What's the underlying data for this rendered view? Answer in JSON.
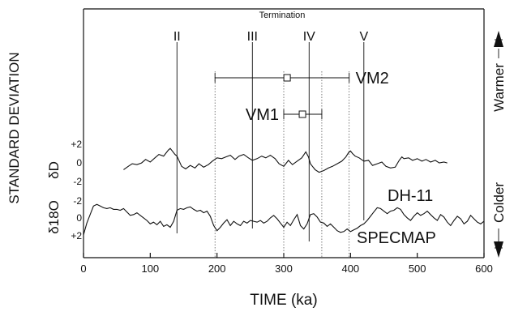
{
  "chart_data": {
    "type": "line",
    "title": "",
    "xlabel": "TIME (ka)",
    "ylabel": "STANDARD DEVIATION",
    "xlim": [
      0,
      600
    ],
    "x_ticks": [
      "0",
      "100",
      "200",
      "300",
      "400",
      "500",
      "600"
    ],
    "upper_axis_label": "δD",
    "upper_ticks": [
      "+2",
      "0",
      "-2"
    ],
    "lower_axis_label": "δ18O",
    "lower_ticks": [
      "-2",
      "0",
      "+2"
    ],
    "right_label_top": "Warmer",
    "right_label_bottom": "Colder",
    "terminations": {
      "label": "Termination",
      "items": [
        {
          "name": "II",
          "x": 140
        },
        {
          "name": "III",
          "x": 253
        },
        {
          "name": "IV",
          "x": 338
        },
        {
          "name": "V",
          "x": 420
        }
      ]
    },
    "ranges": [
      {
        "name": "VM2",
        "min": 197,
        "max": 398,
        "center": 305
      },
      {
        "name": "VM1",
        "min": 300,
        "max": 357,
        "center": 328
      }
    ],
    "dotted_lines_x": [
      197,
      300,
      357,
      398
    ],
    "series": [
      {
        "name": "DH-11",
        "x": [
          60,
          67,
          73,
          80,
          87,
          93,
          100,
          107,
          113,
          120,
          127,
          130,
          133,
          137,
          140,
          147,
          153,
          160,
          167,
          173,
          180,
          187,
          193,
          200,
          207,
          213,
          220,
          227,
          233,
          240,
          247,
          253,
          260,
          267,
          273,
          280,
          287,
          293,
          300,
          307,
          313,
          320,
          327,
          333,
          337,
          340,
          343,
          347,
          353,
          360,
          367,
          373,
          380,
          387,
          393,
          397,
          400,
          403,
          407,
          413,
          420,
          427,
          433,
          440,
          447,
          453,
          460,
          467,
          473,
          477,
          480,
          487,
          493,
          500,
          507,
          513,
          520,
          527,
          533,
          540,
          545
        ],
        "values": [
          -0.9,
          -0.5,
          -0.2,
          -0.3,
          -0.1,
          0.3,
          0.0,
          0.5,
          0.9,
          0.7,
          1.4,
          1.6,
          1.3,
          0.9,
          0.7,
          -0.5,
          -0.8,
          -0.4,
          -0.7,
          -0.2,
          -0.6,
          -0.3,
          0.1,
          0.5,
          0.4,
          0.6,
          0.8,
          0.3,
          0.7,
          0.9,
          0.5,
          0.2,
          0.4,
          0.7,
          0.5,
          0.8,
          0.4,
          -0.2,
          -0.5,
          0.2,
          -0.3,
          0.1,
          0.5,
          1.2,
          0.6,
          -0.2,
          -0.5,
          -0.9,
          -1.2,
          -1.0,
          -0.7,
          -0.5,
          -0.2,
          0.1,
          0.6,
          1.1,
          1.3,
          1.0,
          0.7,
          0.5,
          0.1,
          0.2,
          -0.4,
          -0.2,
          0.0,
          -0.5,
          -0.7,
          -0.6,
          0.2,
          0.6,
          0.4,
          0.5,
          0.2,
          0.4,
          0.1,
          0.3,
          0.0,
          0.2,
          -0.1,
          0.0,
          -0.1
        ]
      },
      {
        "name": "SPECMAP",
        "x": [
          0,
          5,
          10,
          15,
          20,
          25,
          30,
          35,
          40,
          45,
          50,
          55,
          60,
          65,
          70,
          75,
          80,
          85,
          90,
          95,
          100,
          105,
          110,
          115,
          120,
          125,
          130,
          135,
          140,
          145,
          150,
          155,
          160,
          165,
          170,
          175,
          180,
          185,
          190,
          195,
          200,
          205,
          210,
          215,
          220,
          225,
          230,
          235,
          240,
          245,
          250,
          255,
          260,
          265,
          270,
          275,
          280,
          285,
          290,
          295,
          300,
          305,
          310,
          315,
          320,
          325,
          330,
          335,
          340,
          345,
          350,
          355,
          360,
          365,
          370,
          375,
          380,
          385,
          390,
          395,
          400,
          405,
          410,
          415,
          420,
          425,
          430,
          435,
          440,
          445,
          450,
          455,
          460,
          465,
          470,
          475,
          480,
          485,
          490,
          495,
          500,
          505,
          510,
          515,
          520,
          525,
          530,
          535,
          540,
          545,
          550,
          555,
          560,
          565,
          570,
          575,
          580,
          585,
          590,
          595,
          600
        ],
        "values": [
          -1.9,
          -0.5,
          0.5,
          1.5,
          1.7,
          1.5,
          1.3,
          1.2,
          1.3,
          1.1,
          1.1,
          1.0,
          1.2,
          0.8,
          0.4,
          0.5,
          0.7,
          0.4,
          0.1,
          -0.2,
          -0.6,
          -0.4,
          -0.7,
          -0.3,
          -0.9,
          -0.7,
          -1.0,
          -0.3,
          1.0,
          1.2,
          1.1,
          1.3,
          1.4,
          1.1,
          0.9,
          1.0,
          0.7,
          0.9,
          0.3,
          -0.8,
          -1.4,
          -1.0,
          -0.5,
          -0.1,
          -0.8,
          -0.3,
          -0.6,
          -0.8,
          -0.3,
          -0.5,
          -0.2,
          -0.3,
          -0.4,
          -0.2,
          -0.5,
          -0.3,
          0.1,
          0.4,
          0.0,
          -0.5,
          -1.0,
          -0.4,
          -0.8,
          -0.1,
          0.5,
          -0.8,
          -1.2,
          -0.6,
          0.5,
          0.6,
          0.2,
          -0.4,
          -0.5,
          -0.9,
          -0.6,
          -1.0,
          -1.4,
          -1.6,
          -1.5,
          -1.2,
          -1.5,
          -1.3,
          -1.1,
          -0.8,
          -0.6,
          -0.2,
          0.3,
          0.8,
          1.3,
          1.2,
          0.9,
          0.6,
          0.9,
          1.0,
          1.3,
          1.1,
          0.5,
          0.1,
          -0.2,
          0.3,
          0.7,
          0.4,
          0.6,
          0.9,
          0.5,
          0.1,
          -0.2,
          0.5,
          0.2,
          -0.4,
          -0.8,
          -0.2,
          0.3,
          0.0,
          -0.6,
          -0.3,
          0.4,
          0.0,
          -0.4,
          -0.6,
          -0.3
        ]
      }
    ],
    "grid": false,
    "legend": "inline labels next to series"
  }
}
